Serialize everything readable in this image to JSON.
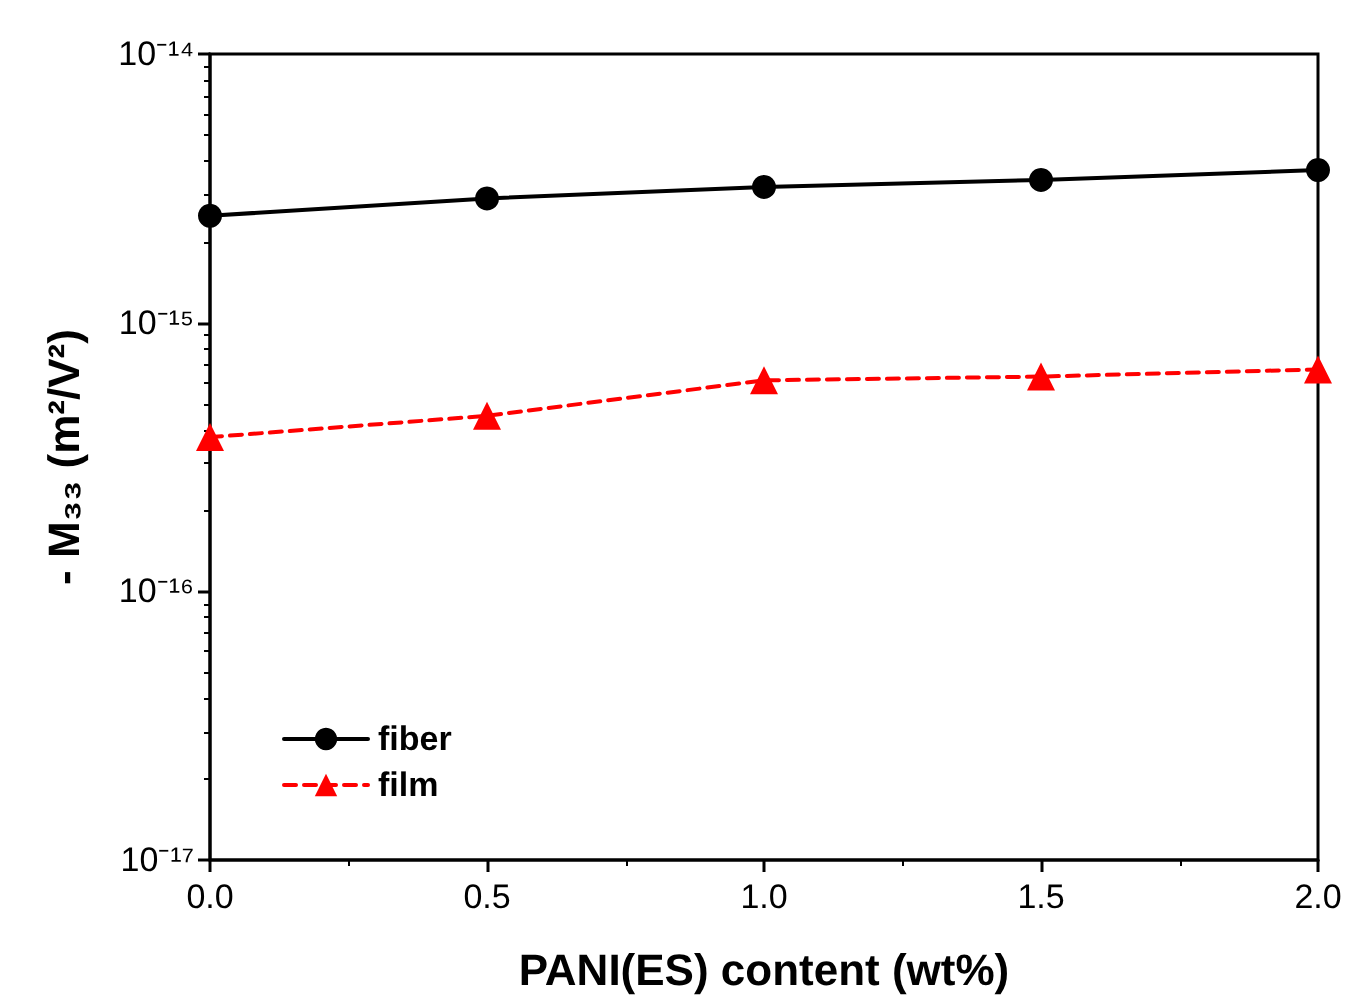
{
  "chart_data": {
    "type": "line",
    "xlabel": "PANI(ES) content (wt%)",
    "ylabel": "- M₃₃ (m²/V²)",
    "x": [
      0,
      0.5,
      1.0,
      1.5,
      2.0
    ],
    "series": [
      {
        "name": "fiber",
        "color": "#000000",
        "marker": "circle",
        "line_style": "solid",
        "values": [
          2.5e-15,
          2.9e-15,
          3.2e-15,
          3.4e-15,
          3.7e-15
        ]
      },
      {
        "name": "film",
        "color": "#ff0000",
        "marker": "triangle",
        "line_style": "dashed",
        "values": [
          3.75e-16,
          4.5e-16,
          6.1e-16,
          6.3e-16,
          6.7e-16
        ]
      }
    ],
    "xlim": [
      0,
      2.0
    ],
    "xticks": [
      {
        "value": 0,
        "label": "0.0"
      },
      {
        "value": 0.5,
        "label": "0.5"
      },
      {
        "value": 1.0,
        "label": "1.0"
      },
      {
        "value": 1.5,
        "label": "1.5"
      },
      {
        "value": 2.0,
        "label": "2.0"
      }
    ],
    "ylim": [
      1e-17,
      1e-14
    ],
    "yticks": [
      {
        "value": 1e-17,
        "label": "10⁻¹⁷"
      },
      {
        "value": 1e-16,
        "label": "10⁻¹⁶"
      },
      {
        "value": 1e-15,
        "label": "10⁻¹⁵"
      },
      {
        "value": 1e-14,
        "label": "10⁻¹⁴"
      }
    ],
    "log": "y",
    "grid": false,
    "legend": "bottom left"
  }
}
